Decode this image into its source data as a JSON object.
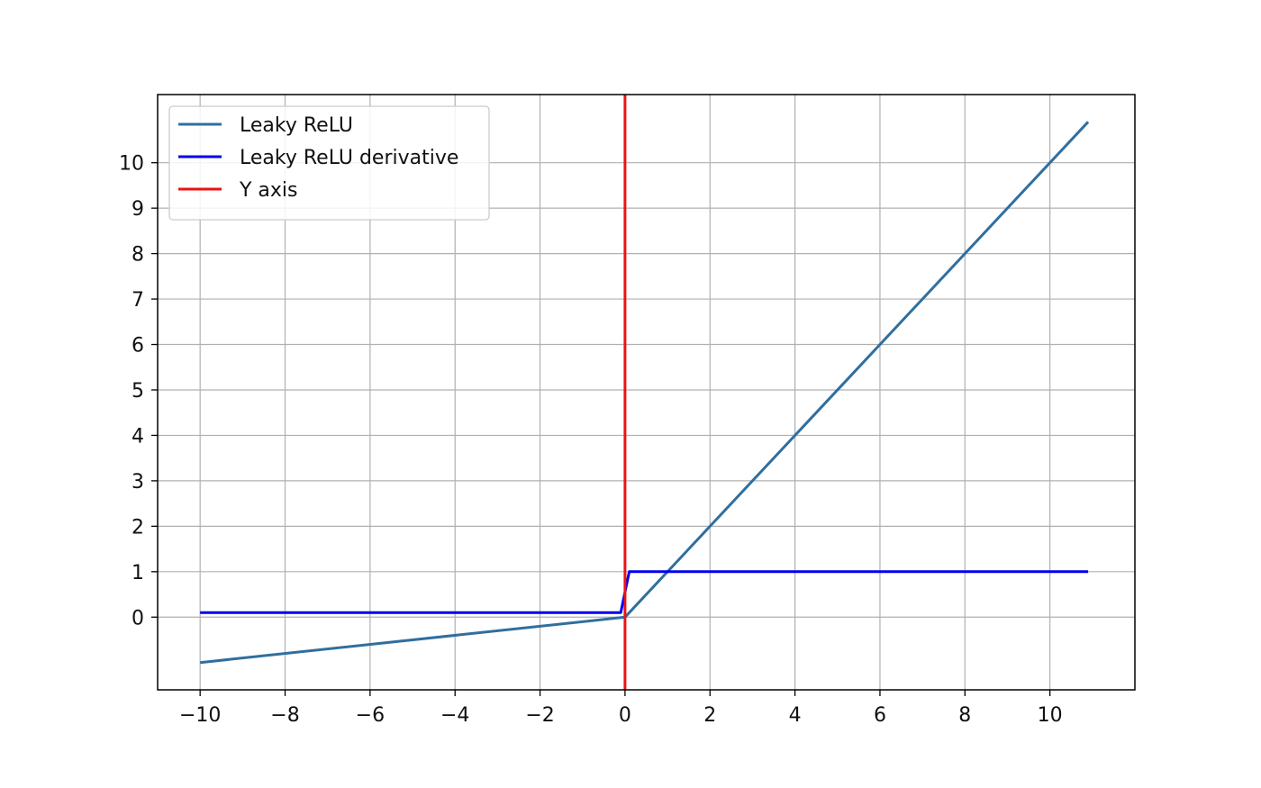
{
  "chart_data": {
    "type": "line",
    "title": "",
    "xlabel": "",
    "ylabel": "",
    "xlim": [
      -11,
      12
    ],
    "ylim": [
      -1.6,
      11.5
    ],
    "x_ticks": [
      -10,
      -8,
      -6,
      -4,
      -2,
      0,
      2,
      4,
      6,
      8,
      10
    ],
    "x_tick_labels": [
      "−10",
      "−8",
      "−6",
      "−4",
      "−2",
      "0",
      "2",
      "4",
      "6",
      "8",
      "10"
    ],
    "y_ticks": [
      0,
      1,
      2,
      3,
      4,
      5,
      6,
      7,
      8,
      9,
      10
    ],
    "y_tick_labels": [
      "0",
      "1",
      "2",
      "3",
      "4",
      "5",
      "6",
      "7",
      "8",
      "9",
      "10"
    ],
    "grid": true,
    "legend_position": "top-left",
    "series": [
      {
        "name": "Leaky ReLU",
        "color": "#2f6f9f",
        "x": [
          -10,
          0,
          10.9
        ],
        "y": [
          -1.0,
          0,
          10.9
        ]
      },
      {
        "name": "Leaky ReLU derivative",
        "color": "#0000ee",
        "x": [
          -10,
          -0.1,
          0.1,
          10.9
        ],
        "y": [
          0.1,
          0.1,
          1,
          1
        ]
      },
      {
        "name": "Y axis",
        "color": "#ee1111",
        "x": [
          0,
          0
        ],
        "y": [
          -1.6,
          11.5
        ]
      }
    ]
  }
}
